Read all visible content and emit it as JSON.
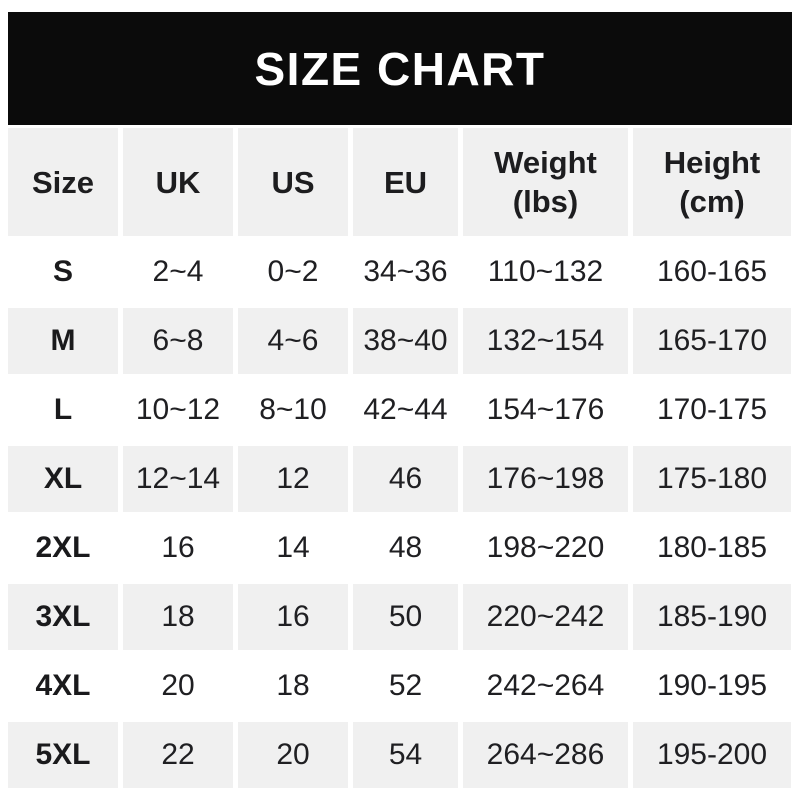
{
  "banner": {
    "title": "SIZE CHART"
  },
  "table": {
    "headers": [
      {
        "line1": "Size",
        "line2": ""
      },
      {
        "line1": "UK",
        "line2": ""
      },
      {
        "line1": "US",
        "line2": ""
      },
      {
        "line1": "EU",
        "line2": ""
      },
      {
        "line1": "Weight",
        "line2": "(lbs)"
      },
      {
        "line1": "Height",
        "line2": "(cm)"
      }
    ],
    "rows": [
      {
        "label": "S",
        "cells": [
          "2~4",
          "0~2",
          "34~36",
          "110~132",
          "160-165"
        ]
      },
      {
        "label": "M",
        "cells": [
          "6~8",
          "4~6",
          "38~40",
          "132~154",
          "165-170"
        ]
      },
      {
        "label": "L",
        "cells": [
          "10~12",
          "8~10",
          "42~44",
          "154~176",
          "170-175"
        ]
      },
      {
        "label": "XL",
        "cells": [
          "12~14",
          "12",
          "46",
          "176~198",
          "175-180"
        ]
      },
      {
        "label": "2XL",
        "cells": [
          "16",
          "14",
          "48",
          "198~220",
          "180-185"
        ]
      },
      {
        "label": "3XL",
        "cells": [
          "18",
          "16",
          "50",
          "220~242",
          "185-190"
        ]
      },
      {
        "label": "4XL",
        "cells": [
          "20",
          "18",
          "52",
          "242~264",
          "190-195"
        ]
      },
      {
        "label": "5XL",
        "cells": [
          "22",
          "20",
          "54",
          "264~286",
          "195-200"
        ]
      }
    ]
  },
  "colors": {
    "banner_bg": "#0b0b0b",
    "banner_text": "#ffffff",
    "row_alt_bg": "#f0f0f0",
    "row_bg": "#ffffff",
    "text": "#1f1f22"
  },
  "chart_data": {
    "type": "table",
    "title": "SIZE CHART",
    "columns": [
      "Size",
      "UK",
      "US",
      "EU",
      "Weight (lbs)",
      "Height (cm)"
    ],
    "rows": [
      [
        "S",
        "2~4",
        "0~2",
        "34~36",
        "110~132",
        "160-165"
      ],
      [
        "M",
        "6~8",
        "4~6",
        "38~40",
        "132~154",
        "165-170"
      ],
      [
        "L",
        "10~12",
        "8~10",
        "42~44",
        "154~176",
        "170-175"
      ],
      [
        "XL",
        "12~14",
        "12",
        "46",
        "176~198",
        "175-180"
      ],
      [
        "2XL",
        "16",
        "14",
        "48",
        "198~220",
        "180-185"
      ],
      [
        "3XL",
        "18",
        "16",
        "50",
        "220~242",
        "185-190"
      ],
      [
        "4XL",
        "20",
        "18",
        "52",
        "242~264",
        "190-195"
      ],
      [
        "5XL",
        "22",
        "20",
        "54",
        "264~286",
        "195-200"
      ]
    ],
    "layout": {
      "header_background": "#f0f0f0",
      "alternating_rows": true,
      "grid": "white gaps between cells"
    }
  }
}
